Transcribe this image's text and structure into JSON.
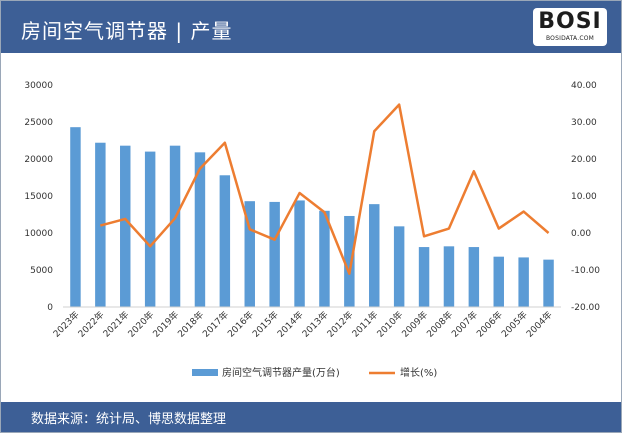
{
  "header": {
    "title": "房间空气调节器 | 产量",
    "logo_text": "BOSI",
    "logo_sub": "BOSIDATA.COM"
  },
  "footer": {
    "source": "数据来源：统计局、博思数据整理"
  },
  "colors": {
    "header_bg": "#3d5f96",
    "bar": "#5b9bd5",
    "line": "#ed7d31"
  },
  "chart_data": {
    "type": "bar",
    "categories": [
      "2023年",
      "2022年",
      "2021年",
      "2020年",
      "2019年",
      "2018年",
      "2017年",
      "2016年",
      "2015年",
      "2014年",
      "2013年",
      "2012年",
      "2011年",
      "2010年",
      "2009年",
      "2008年",
      "2007年",
      "2006年",
      "2005年",
      "2004年"
    ],
    "series": [
      {
        "name": "房间空气调节器产量(万台)",
        "type": "bar",
        "axis": "left",
        "values": [
          24300,
          22200,
          21800,
          21000,
          21800,
          20900,
          17800,
          14300,
          14200,
          14400,
          13000,
          12300,
          13900,
          10900,
          8100,
          8200,
          8100,
          6800,
          6700,
          6400
        ]
      },
      {
        "name": "增长(%)",
        "type": "line",
        "axis": "right",
        "values": [
          null,
          2.0,
          3.8,
          -3.6,
          4.0,
          17.4,
          24.4,
          1.0,
          -1.8,
          10.8,
          5.6,
          -11.0,
          27.5,
          34.7,
          -0.9,
          1.2,
          16.7,
          1.2,
          5.8,
          0.0
        ]
      }
    ],
    "y_left": {
      "ticks": [
        0,
        5000,
        10000,
        15000,
        20000,
        25000,
        30000
      ],
      "tick_labels": [
        "0",
        "5000",
        "10000",
        "15000",
        "20000",
        "25000",
        "30000"
      ],
      "range": [
        0,
        30000
      ]
    },
    "y_right": {
      "ticks": [
        -20,
        -10,
        0,
        10,
        20,
        30,
        40
      ],
      "tick_labels": [
        "-20.00",
        "-10.00",
        "0.00",
        "10.00",
        "20.00",
        "30.00",
        "40.00"
      ],
      "range": [
        -20,
        40
      ]
    },
    "grid": false,
    "legend": "bottom"
  }
}
